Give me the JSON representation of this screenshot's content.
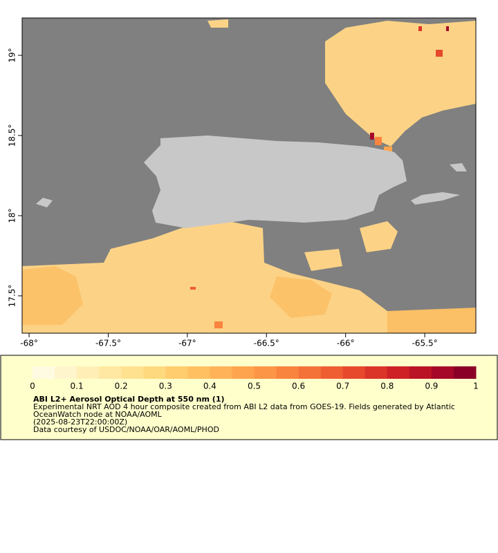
{
  "map": {
    "type": "map",
    "xlim": [
      -68.044,
      -65.177
    ],
    "ylim": [
      17.267,
      19.233
    ],
    "xticks": [
      {
        "value": -68,
        "label": "-68°"
      },
      {
        "value": -67.5,
        "label": "-67.5°"
      },
      {
        "value": -67,
        "label": "-67°"
      },
      {
        "value": -66.5,
        "label": "-66.5°"
      },
      {
        "value": -66,
        "label": "-66°"
      },
      {
        "value": -65.5,
        "label": "-65.5°"
      }
    ],
    "yticks": [
      {
        "value": 17.5,
        "label": "17.5°"
      },
      {
        "value": 18,
        "label": "18°"
      },
      {
        "value": 18.5,
        "label": "18.5°"
      },
      {
        "value": 19,
        "label": "19°"
      }
    ]
  },
  "colorbar": {
    "range": [
      0,
      1
    ],
    "ticks": [
      0,
      0.1,
      0.2,
      0.3,
      0.4,
      0.5,
      0.6,
      0.7,
      0.8,
      0.9,
      1
    ],
    "colors": [
      "#fffbe2",
      "#fff5cc",
      "#ffefb6",
      "#ffe8a2",
      "#ffe190",
      "#ffd97e",
      "#ffcd6e",
      "#ffc062",
      "#ffb258",
      "#ffa44e",
      "#fd9546",
      "#f9843e",
      "#f47238",
      "#ee5e32",
      "#e6492c",
      "#db3428",
      "#cd2126",
      "#bb1326",
      "#a50828",
      "#8a0026"
    ]
  },
  "caption": {
    "title": "ABI L2+ Aerosol Optical Depth at 550 nm (1)",
    "lines": [
      "Experimental NRT AOD 4 hour composite created from ABI L2 data from GOES-19. Fields generated by Atlantic",
      "OceanWatch node at NOAA/AOML",
      "(2025-08-23T22:00:00Z)",
      "Data courtesy of USDOC/NOAA/OAR/AOML/PHOD"
    ]
  }
}
